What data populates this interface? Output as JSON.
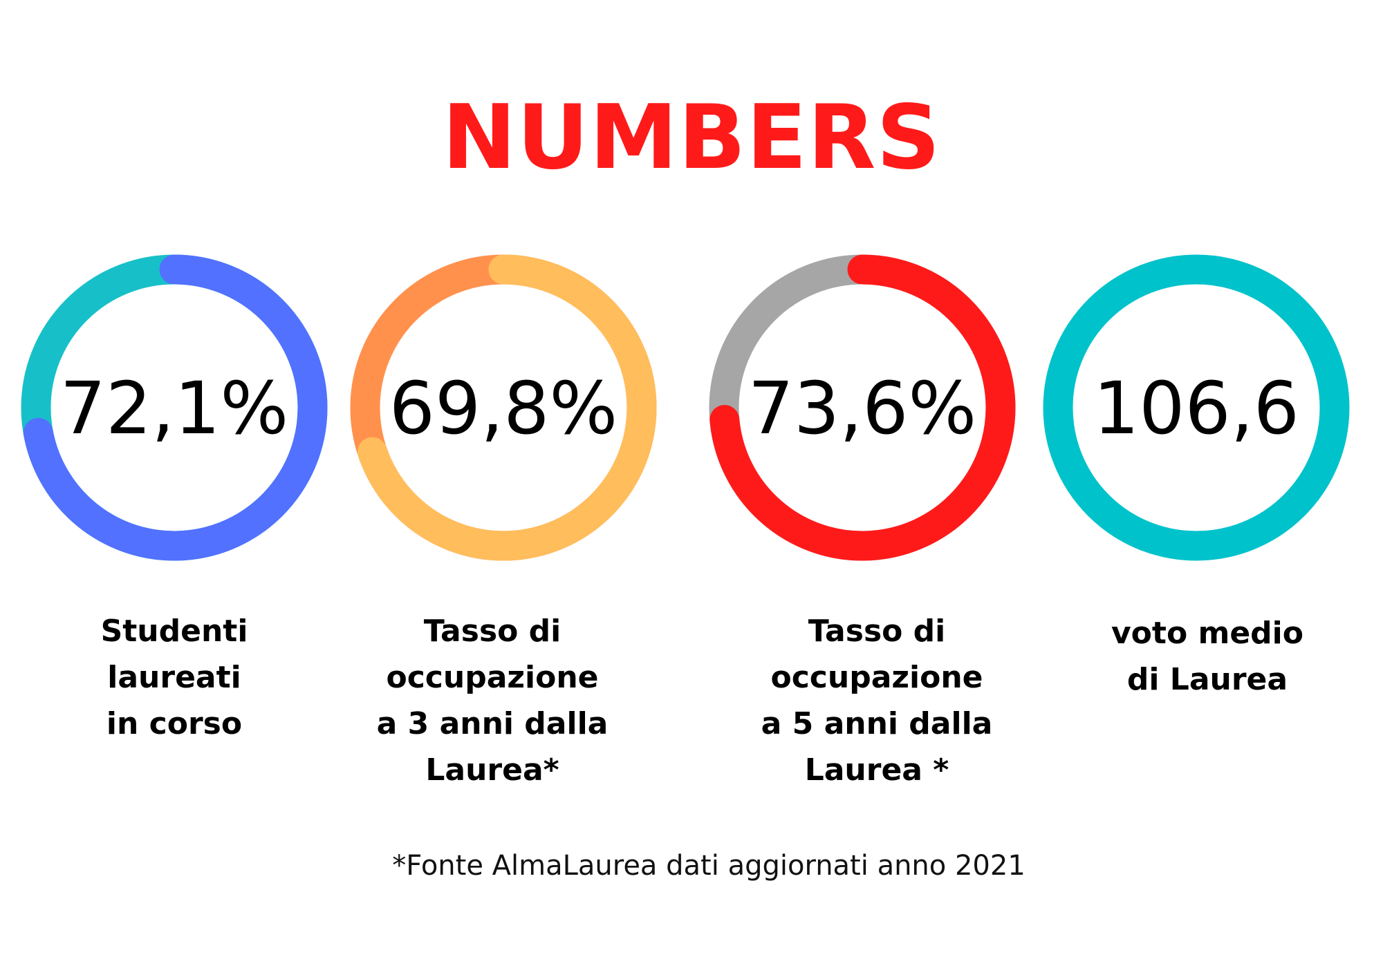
{
  "title": "NUMBERS",
  "title_color": "#ff1a1a",
  "footnote": "*Fonte AlmaLaurea dati aggiornati anno 2021",
  "chart_data": [
    {
      "type": "pie",
      "style": "donut",
      "value_label": "72,1%",
      "caption": "Studenti laureati\nin corso",
      "segments": [
        {
          "value": 72.1,
          "color": "#5271ff"
        },
        {
          "value": 27.9,
          "color": "#17c0c8"
        }
      ]
    },
    {
      "type": "pie",
      "style": "donut",
      "value_label": "69,8%",
      "caption": "Tasso di\noccupazione\na 3 anni dalla\nLaurea*",
      "segments": [
        {
          "value": 69.8,
          "color": "#ffbd5c"
        },
        {
          "value": 30.2,
          "color": "#ff914d"
        }
      ]
    },
    {
      "type": "pie",
      "style": "donut",
      "value_label": "73,6%",
      "caption": "Tasso di\noccupazione\na 5 anni dalla\nLaurea *",
      "segments": [
        {
          "value": 73.6,
          "color": "#ff1a1a"
        },
        {
          "value": 26.4,
          "color": "#a6a6a6"
        }
      ]
    },
    {
      "type": "pie",
      "style": "donut",
      "value_label": "106,6",
      "caption": "voto medio\ndi Laurea",
      "segments": [
        {
          "value": 100,
          "color": "#00c2cb"
        }
      ]
    }
  ]
}
